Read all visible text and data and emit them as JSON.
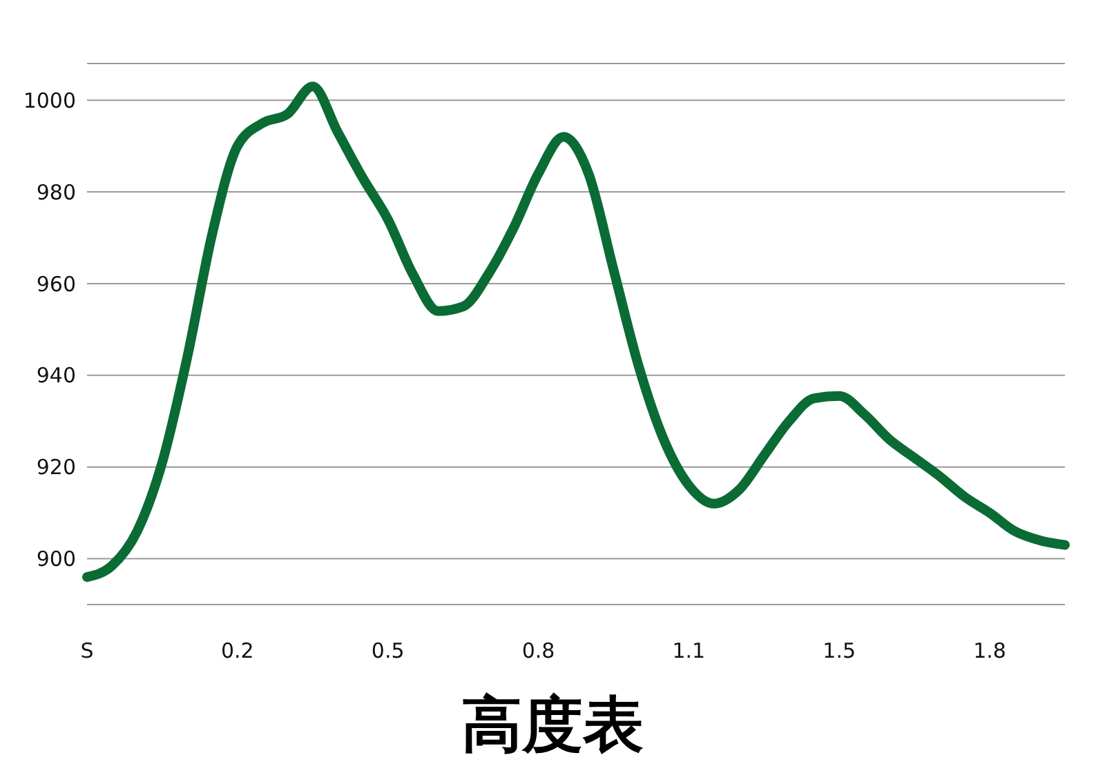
{
  "chart_data": {
    "type": "line",
    "title": "高度表",
    "categories": [
      "S",
      null,
      null,
      null,
      null,
      null,
      "0.2",
      null,
      null,
      null,
      null,
      null,
      "0.5",
      null,
      null,
      null,
      null,
      null,
      "0.8",
      null,
      null,
      null,
      null,
      null,
      "1.1",
      null,
      null,
      null,
      null,
      null,
      "1.5",
      null,
      null,
      null,
      null,
      null,
      "1.8",
      null,
      null,
      null
    ],
    "series": [
      {
        "color": "#0b6b35",
        "values": [
          896,
          898.5,
          906,
          921,
          944,
          971,
          990,
          995,
          997,
          1003,
          993,
          983,
          974,
          962,
          954,
          955,
          962,
          972,
          984,
          992,
          984,
          963,
          942,
          926,
          916,
          912,
          915,
          922.5,
          930,
          935,
          935.5,
          931.5,
          926,
          922,
          918,
          913.5,
          910,
          906,
          904,
          903
        ]
      }
    ],
    "ylim": [
      890,
      1008
    ],
    "yticks": [
      900,
      920,
      940,
      960,
      980,
      1000
    ],
    "grid": "y",
    "legend": false,
    "marker": "none",
    "line_style": "solid"
  }
}
